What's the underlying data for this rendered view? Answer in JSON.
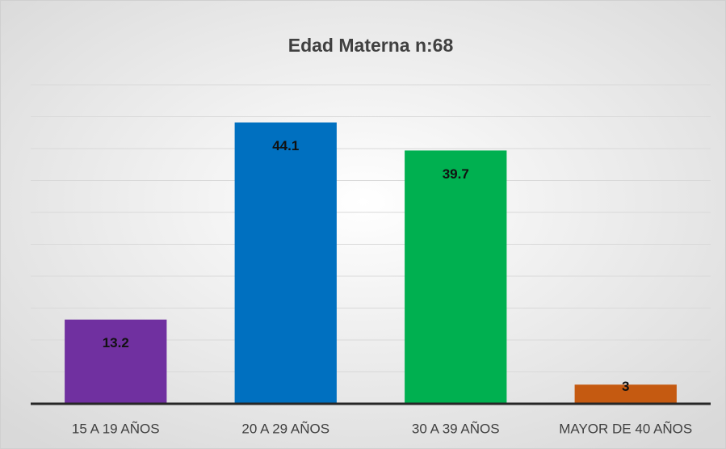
{
  "chart_data": {
    "type": "bar",
    "title": "Edad Materna n:68",
    "categories": [
      "15 A 19 AÑOS",
      "20 A 29 AÑOS",
      "30  A 39 AÑOS",
      "MAYOR DE 40 AÑOS"
    ],
    "series": [
      {
        "name": null,
        "values": [
          13.2,
          44.1,
          39.7,
          3
        ],
        "colors": [
          "#7030a0",
          "#0070c0",
          "#00b050",
          "#c55a11"
        ]
      }
    ],
    "ylim": [
      0,
      50
    ],
    "yticks": [
      0,
      5,
      10,
      15,
      20,
      25,
      30,
      35,
      40,
      45,
      50
    ],
    "grid": true
  }
}
